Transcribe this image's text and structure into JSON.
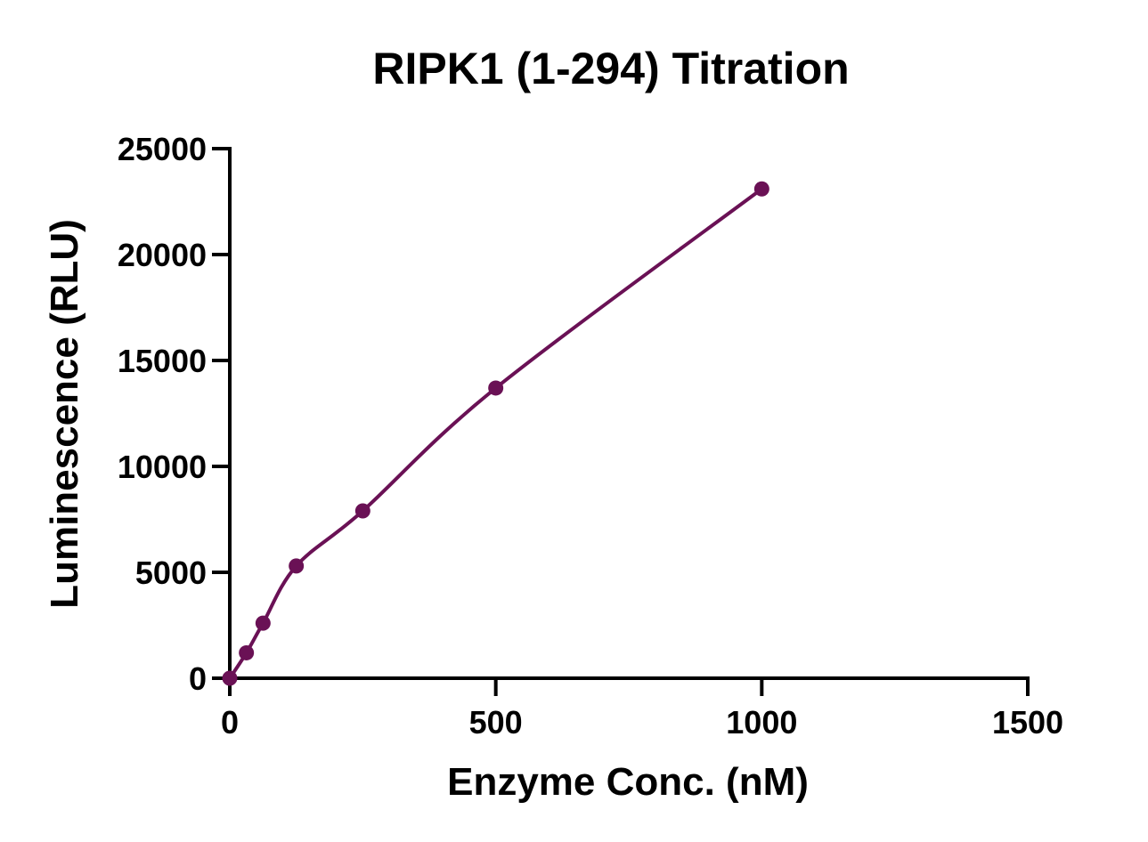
{
  "chart_data": {
    "type": "scatter",
    "title": "RIPK1 (1-294) Titration",
    "xlabel": "Enzyme Conc. (nM)",
    "ylabel": "Luminescence (RLU)",
    "xlim": [
      0,
      1500
    ],
    "ylim": [
      0,
      25000
    ],
    "x_ticks": [
      0,
      500,
      1000,
      1500
    ],
    "y_ticks": [
      0,
      5000,
      10000,
      15000,
      20000,
      25000
    ],
    "grid": false,
    "legend": "none",
    "colors": {
      "series": "#6a1155",
      "axis": "#000000"
    },
    "series": [
      {
        "x": [
          0,
          31.25,
          62.5,
          125,
          250,
          500,
          1000
        ],
        "y": [
          0,
          1200,
          2600,
          5300,
          7900,
          13700,
          23100
        ],
        "fit_curve": true
      }
    ]
  }
}
